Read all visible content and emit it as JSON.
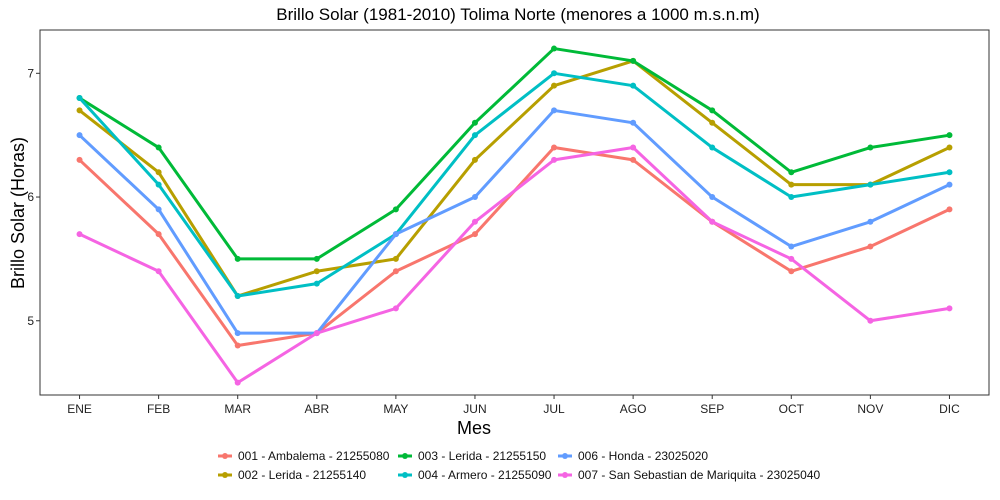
{
  "chart_data": {
    "type": "line",
    "title": "Brillo Solar (1981-2010) Tolima Norte (menores a 1000 m.s.n.m)",
    "xlabel": "Mes",
    "ylabel": "Brillo Solar (Horas)",
    "categories": [
      "ENE",
      "FEB",
      "MAR",
      "ABR",
      "MAY",
      "JUN",
      "JUL",
      "AGO",
      "SEP",
      "OCT",
      "NOV",
      "DIC"
    ],
    "yticks": [
      5,
      6,
      7
    ],
    "ylim": [
      4.4,
      7.35
    ],
    "grid": false,
    "legend_position": "bottom",
    "series": [
      {
        "name": "001 - Ambalema - 21255080",
        "color": "#F8766D",
        "values": [
          6.3,
          5.7,
          4.8,
          4.9,
          5.4,
          5.7,
          6.4,
          6.3,
          5.8,
          5.4,
          5.6,
          5.9
        ]
      },
      {
        "name": "002 - Lerida - 21255140",
        "color": "#B79F00",
        "values": [
          6.7,
          6.2,
          5.2,
          5.4,
          5.5,
          6.3,
          6.9,
          7.1,
          6.6,
          6.1,
          6.1,
          6.4
        ]
      },
      {
        "name": "003 - Lerida - 21255150",
        "color": "#00BA38",
        "values": [
          6.8,
          6.4,
          5.5,
          5.5,
          5.9,
          6.6,
          7.2,
          7.1,
          6.7,
          6.2,
          6.4,
          6.5
        ]
      },
      {
        "name": "004 - Armero - 21255090",
        "color": "#00BFC4",
        "values": [
          6.8,
          6.1,
          5.2,
          5.3,
          5.7,
          6.5,
          7.0,
          6.9,
          6.4,
          6.0,
          6.1,
          6.2
        ]
      },
      {
        "name": "006 - Honda - 23025020",
        "color": "#619CFF",
        "values": [
          6.5,
          5.9,
          4.9,
          4.9,
          5.7,
          6.0,
          6.7,
          6.6,
          6.0,
          5.6,
          5.8,
          6.1
        ]
      },
      {
        "name": "007 - San Sebastian de Mariquita - 23025040",
        "color": "#F564E3",
        "values": [
          5.7,
          5.4,
          4.5,
          4.9,
          5.1,
          5.8,
          6.3,
          6.4,
          5.8,
          5.5,
          5.0,
          5.1
        ]
      }
    ]
  }
}
